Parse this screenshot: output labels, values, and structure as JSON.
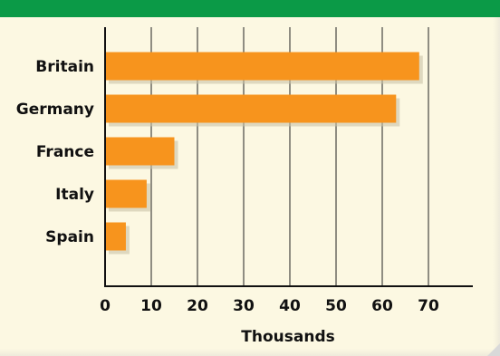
{
  "chart_data": {
    "type": "bar",
    "orientation": "horizontal",
    "categories": [
      "Britain",
      "Germany",
      "France",
      "Italy",
      "Spain"
    ],
    "values": [
      68,
      63,
      15,
      9,
      4.5
    ],
    "xlabel": "Thousands",
    "ylabel": "",
    "xlim": [
      0,
      80
    ],
    "xticks": [
      0,
      10,
      20,
      30,
      40,
      50,
      60,
      70
    ],
    "grid": true,
    "bar_color": "#f7941d",
    "header_color": "#0b9a47",
    "background_color": "#fcf8e2"
  }
}
